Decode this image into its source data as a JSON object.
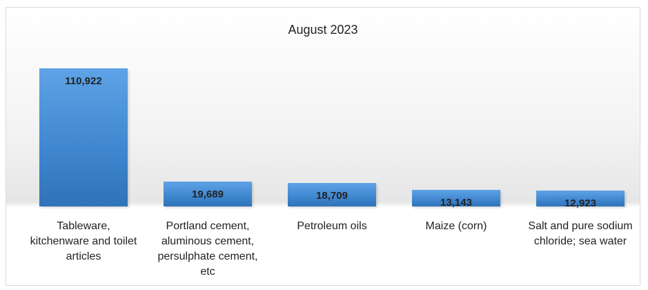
{
  "chart_data": {
    "type": "bar",
    "title": "August 2023",
    "categories": [
      "Tableware, kitchenware and toilet articles",
      "Portland cement, aluminous cement, persulphate cement, etc",
      "Petroleum oils",
      "Maize (corn)",
      "Salt and pure sodium chloride; sea water"
    ],
    "values": [
      110922,
      19689,
      18709,
      13143,
      12923
    ],
    "value_labels": [
      "110,922",
      "19,689",
      "18,709",
      "13,143",
      "12,923"
    ],
    "color": "#3f86cf"
  }
}
